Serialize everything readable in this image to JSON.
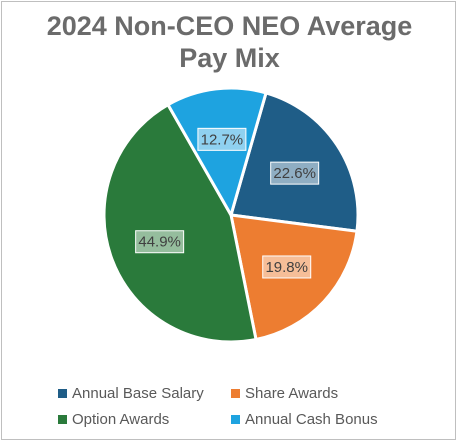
{
  "chart_data": {
    "type": "pie",
    "title_line1": "2024 Non-CEO NEO Average",
    "title_line2": "Pay Mix",
    "slices": [
      {
        "name": "Annual Base Salary",
        "value": 22.6,
        "label": "22.6%",
        "color": "#1f5d87"
      },
      {
        "name": "Share Awards",
        "value": 19.8,
        "label": "19.8%",
        "color": "#ed7d31"
      },
      {
        "name": "Option Awards",
        "value": 44.9,
        "label": "44.9%",
        "color": "#2a7a3b"
      },
      {
        "name": "Annual Cash Bonus",
        "value": 12.7,
        "label": "12.7%",
        "color": "#1ea3e0"
      }
    ],
    "start_angle_deg": 16,
    "direction": "clockwise",
    "legend_position": "bottom",
    "legend": [
      {
        "label": "Annual Base Salary",
        "color": "#1f5d87"
      },
      {
        "label": "Share Awards",
        "color": "#ed7d31"
      },
      {
        "label": "Option Awards",
        "color": "#2a7a3b"
      },
      {
        "label": "Annual Cash Bonus",
        "color": "#1ea3e0"
      }
    ]
  }
}
